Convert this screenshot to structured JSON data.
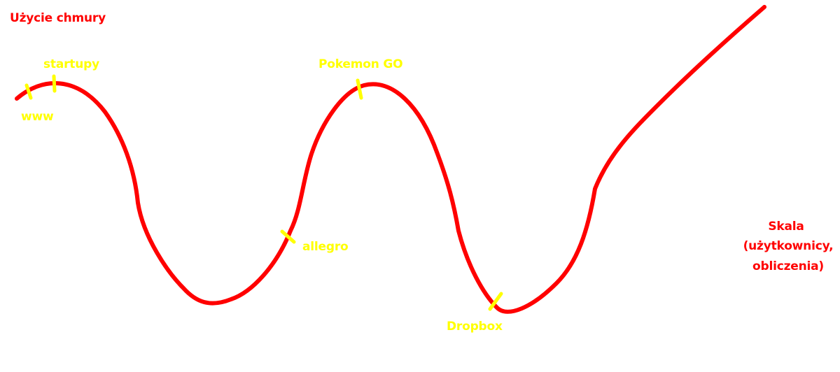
{
  "diagram": {
    "y_axis_label": "Użycie chmury",
    "x_axis_label_lines": [
      "Skala",
      "(użytkownicy,",
      "obliczenia)"
    ],
    "milestones": [
      {
        "id": "www",
        "label": "www"
      },
      {
        "id": "startupy",
        "label": "startupy"
      },
      {
        "id": "pokemon-go",
        "label": "Pokemon GO"
      },
      {
        "id": "allegro",
        "label": "allegro"
      },
      {
        "id": "dropbox",
        "label": "Dropbox"
      }
    ],
    "colors": {
      "curve": "#ff0000",
      "marker": "#ffff00",
      "axis_text": "#ff0000",
      "milestone_text": "#ffff00",
      "background": "#ffffff"
    }
  }
}
